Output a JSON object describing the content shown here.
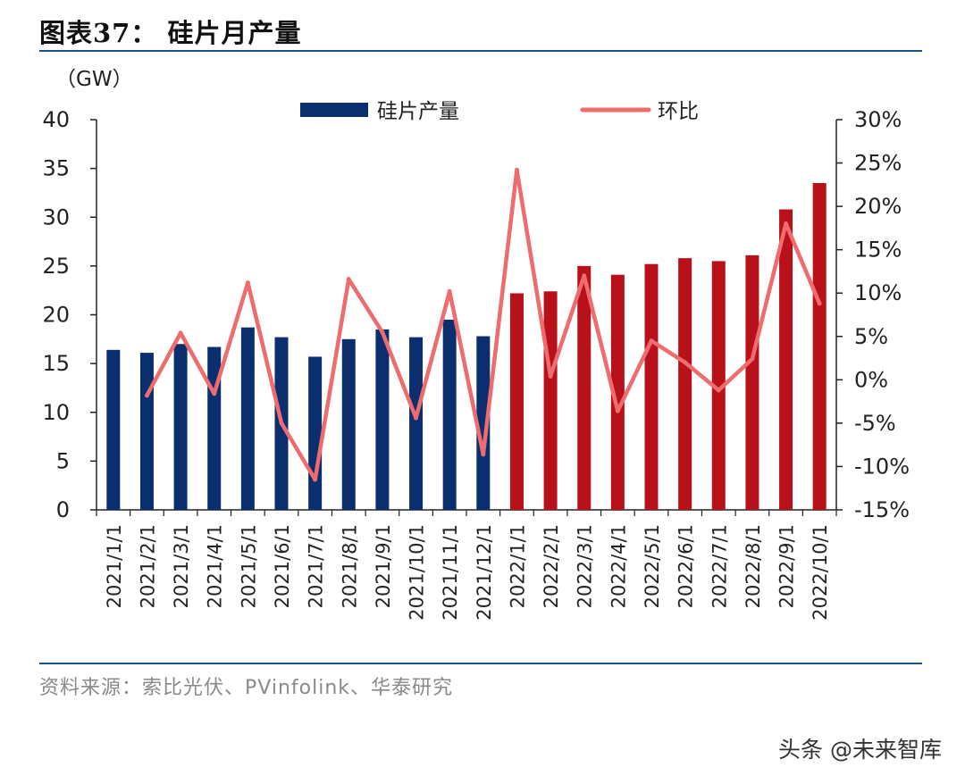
{
  "header": {
    "title": "图表37：  硅片月产量"
  },
  "footer": {
    "source": "资料来源：索比光伏、PVinfolink、华泰研究",
    "watermark": "头条 @未来智库"
  },
  "colors": {
    "bar_2021": "#0b2f6e",
    "bar_2022": "#b8111a",
    "line": "#ee6b6e",
    "rule": "#1f4e8c"
  },
  "chart_data": {
    "type": "bar+line",
    "unit_label": "（GW）",
    "categories": [
      "2021/1/1",
      "2021/2/1",
      "2021/3/1",
      "2021/4/1",
      "2021/5/1",
      "2021/6/1",
      "2021/7/1",
      "2021/8/1",
      "2021/9/1",
      "2021/10/1",
      "2021/11/1",
      "2021/12/1",
      "2022/1/1",
      "2022/2/1",
      "2022/3/1",
      "2022/4/1",
      "2022/5/1",
      "2022/6/1",
      "2022/7/1",
      "2022/8/1",
      "2022/9/1",
      "2022/10/1"
    ],
    "series": [
      {
        "name": "硅片产量",
        "type": "bar",
        "axis": "left",
        "values": [
          16.4,
          16.1,
          17.0,
          16.7,
          18.7,
          17.7,
          15.7,
          17.5,
          18.5,
          17.7,
          19.5,
          17.8,
          22.2,
          22.4,
          25.0,
          24.1,
          25.2,
          25.8,
          25.5,
          26.1,
          30.8,
          33.5
        ]
      },
      {
        "name": "环比",
        "type": "line",
        "axis": "right",
        "values": [
          null,
          -1.8,
          5.4,
          -1.6,
          11.2,
          -5.0,
          -11.5,
          11.6,
          5.5,
          -4.4,
          10.2,
          -8.6,
          24.2,
          0.4,
          12.0,
          -3.6,
          4.5,
          2.0,
          -1.2,
          2.4,
          18.0,
          8.8
        ]
      }
    ],
    "y_left": {
      "min": 0,
      "max": 40,
      "ticks": [
        "0",
        "5",
        "10",
        "15",
        "20",
        "25",
        "30",
        "35",
        "40"
      ]
    },
    "y_right": {
      "min": -15,
      "max": 30,
      "ticks": [
        "-15%",
        "-10%",
        "-5%",
        "0%",
        "5%",
        "10%",
        "15%",
        "20%",
        "25%",
        "30%"
      ]
    },
    "legend": [
      {
        "label": "硅片产量"
      },
      {
        "label": "环比"
      }
    ],
    "legend_position": "top"
  }
}
